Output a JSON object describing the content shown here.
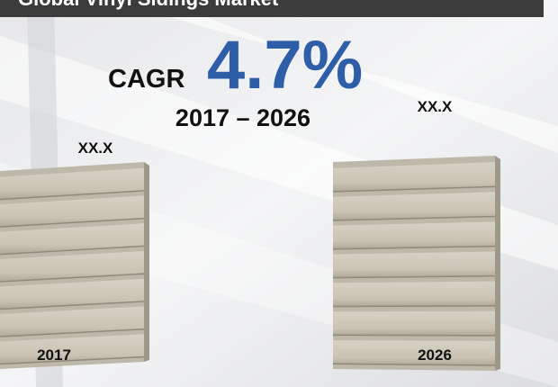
{
  "header": {
    "title": "Global Vinyl Sidings Market"
  },
  "cagr": {
    "label": "CAGR",
    "value": "4.7%",
    "period": "2017 – 2026"
  },
  "items": [
    {
      "year": "2017",
      "value": "XX.X"
    },
    {
      "year": "2026",
      "value": "XX.X"
    }
  ]
}
